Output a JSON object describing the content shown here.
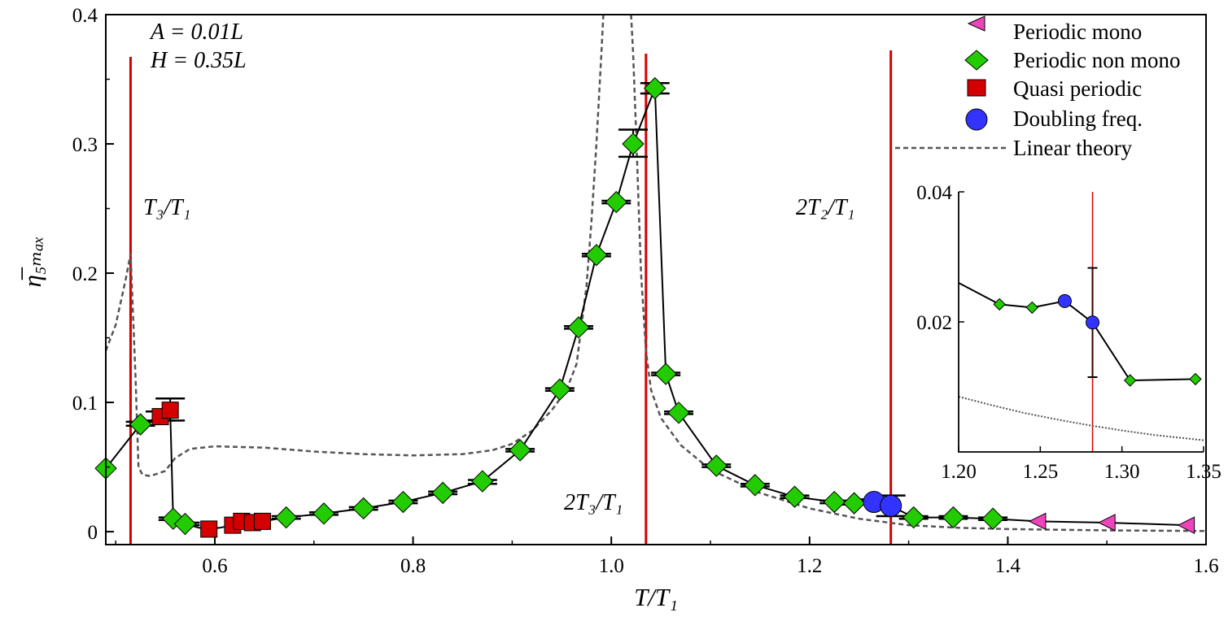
{
  "chart_data": {
    "type": "scatter",
    "xlabel": "T/T₁",
    "ylabel": "η̅₅ₘₐₓ",
    "xlim": [
      0.49,
      1.6
    ],
    "ylim": [
      -0.01,
      0.4
    ],
    "xticks": [
      0.6,
      0.8,
      1.0,
      1.2,
      1.4,
      1.6
    ],
    "xtick_labels": [
      "0.6",
      "0.8",
      "1.0",
      "1.2",
      "1.4",
      "1.6"
    ],
    "yticks": [
      0,
      0.1,
      0.2,
      0.3,
      0.4
    ],
    "ytick_labels": [
      "0",
      "0.1",
      "0.2",
      "0.3",
      "0.4"
    ],
    "grid": false,
    "legend_position": "top-right",
    "params": [
      "A = 0.01L",
      "H = 0.35L"
    ],
    "vlines": [
      {
        "x": 0.515,
        "label": "T₃/T₁",
        "color": "#d40000"
      },
      {
        "x": 1.035,
        "label": "2T₃/T₁",
        "color": "#d40000"
      },
      {
        "x": 1.282,
        "label": "2T₂/T₁",
        "color": "#d40000"
      }
    ],
    "connector_line": [
      [
        0.49,
        0.049
      ],
      [
        0.525,
        0.083
      ],
      [
        0.545,
        0.089
      ],
      [
        0.555,
        0.093
      ],
      [
        0.558,
        0.01
      ],
      [
        0.57,
        0.006
      ],
      [
        0.584,
        0.003
      ],
      [
        0.594,
        0.002
      ],
      [
        0.605,
        0.003
      ],
      [
        0.618,
        0.005
      ],
      [
        0.627,
        0.009
      ],
      [
        0.635,
        0.006
      ],
      [
        0.648,
        0.008
      ],
      [
        0.672,
        0.011
      ],
      [
        0.71,
        0.014
      ],
      [
        0.75,
        0.018
      ],
      [
        0.79,
        0.023
      ],
      [
        0.83,
        0.03
      ],
      [
        0.87,
        0.039
      ],
      [
        0.908,
        0.063
      ],
      [
        0.948,
        0.11
      ],
      [
        0.967,
        0.158
      ],
      [
        0.985,
        0.214
      ],
      [
        1.005,
        0.255
      ],
      [
        1.022,
        0.3
      ],
      [
        1.044,
        0.343
      ],
      [
        1.055,
        0.122
      ],
      [
        1.068,
        0.092
      ],
      [
        1.106,
        0.051
      ],
      [
        1.145,
        0.036
      ],
      [
        1.185,
        0.027
      ],
      [
        1.225,
        0.023
      ],
      [
        1.245,
        0.022
      ],
      [
        1.265,
        0.023
      ],
      [
        1.282,
        0.02
      ],
      [
        1.305,
        0.011
      ],
      [
        1.345,
        0.011
      ],
      [
        1.385,
        0.01
      ],
      [
        1.43,
        0.008
      ],
      [
        1.5,
        0.007
      ],
      [
        1.58,
        0.005
      ]
    ],
    "linear_theory": [
      [
        0.49,
        0.14
      ],
      [
        0.5,
        0.16
      ],
      [
        0.51,
        0.195
      ],
      [
        0.515,
        0.215
      ],
      [
        0.52,
        0.12
      ],
      [
        0.523,
        0.05
      ],
      [
        0.527,
        0.044
      ],
      [
        0.535,
        0.043
      ],
      [
        0.55,
        0.047
      ],
      [
        0.56,
        0.057
      ],
      [
        0.575,
        0.064
      ],
      [
        0.6,
        0.066
      ],
      [
        0.65,
        0.065
      ],
      [
        0.7,
        0.062
      ],
      [
        0.75,
        0.06
      ],
      [
        0.8,
        0.059
      ],
      [
        0.85,
        0.06
      ],
      [
        0.88,
        0.063
      ],
      [
        0.9,
        0.068
      ],
      [
        0.92,
        0.078
      ],
      [
        0.94,
        0.094
      ],
      [
        0.955,
        0.11
      ],
      [
        0.965,
        0.13
      ],
      [
        0.975,
        0.19
      ],
      [
        0.98,
        0.24
      ],
      [
        0.985,
        0.3
      ],
      [
        0.99,
        0.37
      ],
      [
        0.992,
        0.4
      ]
    ],
    "linear_theory_right": [
      [
        1.02,
        0.4
      ],
      [
        1.022,
        0.37
      ],
      [
        1.025,
        0.31
      ],
      [
        1.03,
        0.2
      ],
      [
        1.035,
        0.14
      ],
      [
        1.04,
        0.11
      ],
      [
        1.05,
        0.088
      ],
      [
        1.07,
        0.067
      ],
      [
        1.1,
        0.048
      ],
      [
        1.15,
        0.03
      ],
      [
        1.2,
        0.018
      ],
      [
        1.25,
        0.01
      ],
      [
        1.3,
        0.005
      ],
      [
        1.35,
        0.003
      ],
      [
        1.4,
        0.002
      ],
      [
        1.5,
        0.001
      ],
      [
        1.6,
        0.0005
      ]
    ],
    "series": [
      {
        "name": "Periodic mono",
        "marker": "triangle-left",
        "color": "#ee44bb",
        "points": [
          [
            1.43,
            0.008
          ],
          [
            1.5,
            0.007
          ],
          [
            1.58,
            0.005
          ]
        ]
      },
      {
        "name": "Periodic non mono",
        "marker": "diamond",
        "color": "#22cc00",
        "points": [
          [
            0.49,
            0.049
          ],
          [
            0.525,
            0.083
          ],
          [
            0.558,
            0.01
          ],
          [
            0.57,
            0.006
          ],
          [
            0.672,
            0.011
          ],
          [
            0.71,
            0.014
          ],
          [
            0.75,
            0.018
          ],
          [
            0.79,
            0.023
          ],
          [
            0.83,
            0.03
          ],
          [
            0.87,
            0.039
          ],
          [
            0.908,
            0.063
          ],
          [
            0.948,
            0.11
          ],
          [
            0.967,
            0.158
          ],
          [
            0.985,
            0.214
          ],
          [
            1.005,
            0.255
          ],
          [
            1.022,
            0.3
          ],
          [
            1.044,
            0.343
          ],
          [
            1.055,
            0.122
          ],
          [
            1.068,
            0.092
          ],
          [
            1.106,
            0.051
          ],
          [
            1.145,
            0.036
          ],
          [
            1.185,
            0.027
          ],
          [
            1.225,
            0.023
          ],
          [
            1.245,
            0.022
          ],
          [
            1.305,
            0.011
          ],
          [
            1.345,
            0.011
          ],
          [
            1.385,
            0.01
          ]
        ]
      },
      {
        "name": "Quasi periodic",
        "marker": "square",
        "color": "#d40000",
        "points": [
          [
            0.545,
            0.089
          ],
          [
            0.555,
            0.094
          ],
          [
            0.594,
            0.002
          ],
          [
            0.618,
            0.005
          ],
          [
            0.627,
            0.008
          ],
          [
            0.638,
            0.007
          ],
          [
            0.648,
            0.008
          ]
        ]
      },
      {
        "name": "Doubling freq.",
        "marker": "circle",
        "color": "#3333ff",
        "points": [
          [
            1.265,
            0.023
          ],
          [
            1.282,
            0.02
          ]
        ]
      },
      {
        "name": "Linear theory",
        "marker": "dashed-line",
        "color": "#555555",
        "points": []
      }
    ],
    "error_bars": [
      {
        "x": 0.525,
        "low": 0.082,
        "high": 0.085
      },
      {
        "x": 0.545,
        "low": 0.086,
        "high": 0.093
      },
      {
        "x": 0.555,
        "low": 0.086,
        "high": 0.103
      },
      {
        "x": 0.558,
        "low": 0.009,
        "high": 0.011
      },
      {
        "x": 0.57,
        "low": 0.005,
        "high": 0.007
      },
      {
        "x": 0.672,
        "low": 0.01,
        "high": 0.012
      },
      {
        "x": 0.71,
        "low": 0.013,
        "high": 0.015
      },
      {
        "x": 0.75,
        "low": 0.017,
        "high": 0.019
      },
      {
        "x": 0.79,
        "low": 0.022,
        "high": 0.024
      },
      {
        "x": 0.83,
        "low": 0.029,
        "high": 0.031
      },
      {
        "x": 0.87,
        "low": 0.037,
        "high": 0.04
      },
      {
        "x": 0.908,
        "low": 0.062,
        "high": 0.064
      },
      {
        "x": 0.948,
        "low": 0.109,
        "high": 0.111
      },
      {
        "x": 0.967,
        "low": 0.157,
        "high": 0.159
      },
      {
        "x": 0.985,
        "low": 0.213,
        "high": 0.215
      },
      {
        "x": 1.005,
        "low": 0.254,
        "high": 0.256
      },
      {
        "x": 1.022,
        "low": 0.29,
        "high": 0.311
      },
      {
        "x": 1.044,
        "low": 0.339,
        "high": 0.347
      },
      {
        "x": 1.055,
        "low": 0.121,
        "high": 0.123
      },
      {
        "x": 1.068,
        "low": 0.091,
        "high": 0.093
      },
      {
        "x": 1.106,
        "low": 0.05,
        "high": 0.052
      },
      {
        "x": 1.145,
        "low": 0.035,
        "high": 0.037
      },
      {
        "x": 1.185,
        "low": 0.026,
        "high": 0.028
      },
      {
        "x": 1.225,
        "low": 0.022,
        "high": 0.024
      },
      {
        "x": 1.245,
        "low": 0.021,
        "high": 0.023
      },
      {
        "x": 1.265,
        "low": 0.021,
        "high": 0.025
      },
      {
        "x": 1.282,
        "low": 0.012,
        "high": 0.028
      },
      {
        "x": 1.305,
        "low": 0.01,
        "high": 0.012
      },
      {
        "x": 1.345,
        "low": 0.01,
        "high": 0.012
      },
      {
        "x": 1.385,
        "low": 0.009,
        "high": 0.011
      }
    ],
    "inset": {
      "xlim": [
        1.2,
        1.35
      ],
      "ylim": [
        0.0,
        0.04
      ],
      "xticks": [
        1.2,
        1.25,
        1.3,
        1.35
      ],
      "xtick_labels": [
        "1.20",
        "1.25",
        "1.30",
        "1.35"
      ],
      "yticks": [
        0.02,
        0.04
      ],
      "ytick_labels": [
        "0.02",
        "0.04"
      ],
      "vline_x": 1.282,
      "connector_line": [
        [
          1.2,
          0.026
        ],
        [
          1.225,
          0.0227
        ],
        [
          1.245,
          0.0222
        ],
        [
          1.265,
          0.0232
        ],
        [
          1.282,
          0.0199
        ],
        [
          1.305,
          0.011
        ],
        [
          1.345,
          0.0112
        ]
      ],
      "green_points": [
        [
          1.225,
          0.0227
        ],
        [
          1.245,
          0.0222
        ],
        [
          1.305,
          0.011
        ],
        [
          1.345,
          0.0112
        ]
      ],
      "blue_points": [
        [
          1.265,
          0.0232
        ],
        [
          1.282,
          0.0199
        ]
      ],
      "error_bar": {
        "x": 1.282,
        "low": 0.0115,
        "high": 0.0283
      },
      "linear_theory": [
        [
          1.2,
          0.0085
        ],
        [
          1.22,
          0.0072
        ],
        [
          1.24,
          0.006
        ],
        [
          1.26,
          0.005
        ],
        [
          1.28,
          0.0041
        ],
        [
          1.3,
          0.0033
        ],
        [
          1.32,
          0.0026
        ],
        [
          1.35,
          0.0018
        ]
      ]
    }
  }
}
